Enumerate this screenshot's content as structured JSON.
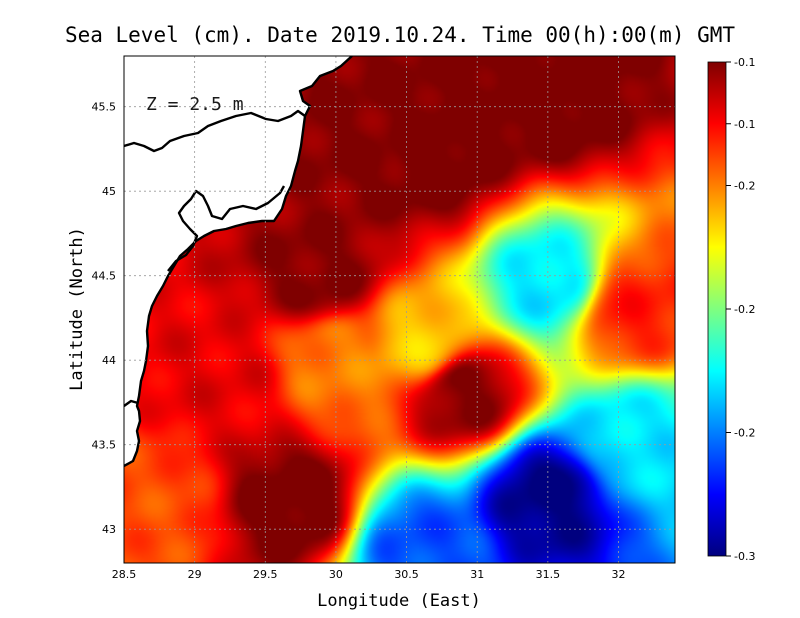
{
  "chart_data": {
    "type": "heatmap",
    "title": "Sea Level (cm). Date 2019.10.24. Time 00(h):00(m) GMT",
    "xlabel": "Longitude (East)",
    "ylabel": "Latitude (North)",
    "annotation": "Z = 2.5 m",
    "xlim": [
      28.5,
      32.4
    ],
    "ylim": [
      42.8,
      45.8
    ],
    "x_ticks": [
      28.5,
      29,
      29.5,
      30,
      30.5,
      31,
      31.5,
      32
    ],
    "x_tick_labels": [
      "28.5",
      "29",
      "29.5",
      "30",
      "30.5",
      "31",
      "31.5",
      "32"
    ],
    "y_ticks": [
      43,
      43.5,
      44,
      44.5,
      45,
      45.5
    ],
    "y_tick_labels": [
      "43",
      "43.5",
      "44",
      "44.5",
      "45",
      "45.5"
    ],
    "grid": true,
    "colorbar": {
      "range": [
        -0.3,
        -0.1
      ],
      "tick_labels": [
        "-0.1",
        "-0.1",
        "-0.2",
        "-0.2",
        "-0.2",
        "-0.3"
      ],
      "tick_values": [
        -0.1,
        -0.125,
        -0.15,
        -0.2,
        -0.25,
        -0.3
      ],
      "colormap": [
        "#00007f",
        "#0000ff",
        "#007fff",
        "#00ffff",
        "#7fff7f",
        "#ffff00",
        "#ff7f00",
        "#ff0000",
        "#7f0000"
      ]
    },
    "land_color": "#ffffff",
    "field_features": [
      {
        "lon": 29.2,
        "lat": 43.9,
        "value": -0.12
      },
      {
        "lon": 29.7,
        "lat": 43.15,
        "value": -0.095
      },
      {
        "lon": 30.3,
        "lat": 45.3,
        "value": -0.1
      },
      {
        "lon": 30.7,
        "lat": 45.2,
        "value": -0.095
      },
      {
        "lon": 31.5,
        "lat": 45.55,
        "value": -0.095
      },
      {
        "lon": 30.9,
        "lat": 43.8,
        "value": -0.1
      },
      {
        "lon": 29.9,
        "lat": 44.5,
        "value": -0.1
      },
      {
        "lon": 31.5,
        "lat": 44.45,
        "value": -0.23
      },
      {
        "lon": 30.6,
        "lat": 44.1,
        "value": -0.165
      },
      {
        "lon": 31.5,
        "lat": 43.2,
        "value": -0.3
      },
      {
        "lon": 30.6,
        "lat": 42.9,
        "value": -0.26
      },
      {
        "lon": 32.1,
        "lat": 43.5,
        "value": -0.23
      },
      {
        "lon": 32.1,
        "lat": 44.3,
        "value": -0.13
      },
      {
        "lon": 28.7,
        "lat": 43.1,
        "value": -0.14
      },
      {
        "lon": 30.0,
        "lat": 44.0,
        "value": -0.15
      }
    ]
  }
}
